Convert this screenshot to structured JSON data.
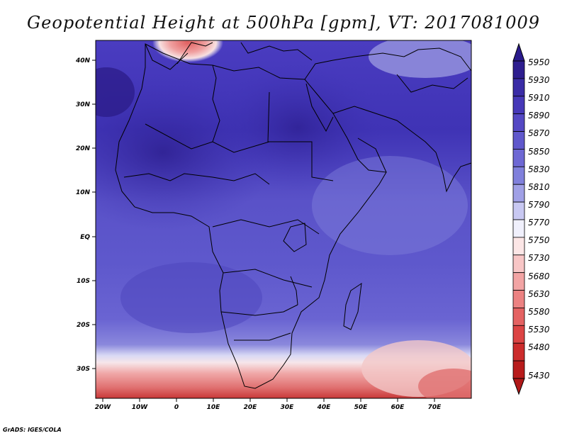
{
  "title": "Geopotential Height at 500hPa [gpm], VT: 2017081009",
  "footer": "GrADS: IGES/COLA",
  "map": {
    "lat_labels": [
      "40N",
      "30N",
      "20N",
      "10N",
      "EQ",
      "10S",
      "20S",
      "30S"
    ],
    "lon_labels": [
      "20W",
      "10W",
      "0",
      "10E",
      "20E",
      "30E",
      "40E",
      "50E",
      "60E",
      "70E"
    ]
  },
  "colorbar": {
    "levels": [
      "5950",
      "5930",
      "5910",
      "5890",
      "5870",
      "5850",
      "5830",
      "5810",
      "5790",
      "5770",
      "5750",
      "5730",
      "5680",
      "5630",
      "5580",
      "5530",
      "5480",
      "5430"
    ],
    "top_color": "#2a1a8c",
    "bottom_color": "#b01818",
    "colors": [
      "#2e1e8f",
      "#3a2ca6",
      "#4638b8",
      "#5448c4",
      "#6058cc",
      "#6e68d4",
      "#8080dc",
      "#a0a0e6",
      "#c8c8f2",
      "#f0f0fc",
      "#fce6e6",
      "#f8c6c6",
      "#f2a4a4",
      "#ec8282",
      "#e46262",
      "#dc4444",
      "#cc2c2c",
      "#b81c1c"
    ]
  }
}
